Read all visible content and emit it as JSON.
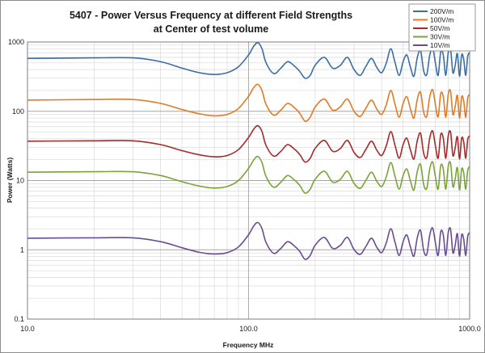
{
  "chart_data": {
    "type": "line",
    "title_lines": [
      "5407 - Power Versus Frequency at different Field Strengths",
      "at Center of test volume"
    ],
    "xlabel": "Frequency MHz",
    "ylabel": "Power (Watts)",
    "xscale": "log",
    "yscale": "log",
    "xlim": [
      10,
      1000
    ],
    "ylim": [
      0.1,
      1000
    ],
    "x_ticks": [
      10,
      100,
      1000
    ],
    "x_tick_labels": [
      "10.0",
      "100.0",
      "1000.0"
    ],
    "y_ticks": [
      0.1,
      1,
      10,
      100,
      1000
    ],
    "y_tick_labels": [
      "0.1",
      "1",
      "10",
      "100",
      "1000"
    ],
    "grid": true,
    "legend_position": "top-right",
    "x": [
      10,
      20,
      30,
      40,
      50,
      60,
      70,
      80,
      90,
      100,
      105,
      110,
      115,
      120,
      130,
      140,
      150,
      160,
      170,
      180,
      190,
      200,
      220,
      240,
      260,
      280,
      300,
      320,
      340,
      360,
      380,
      400,
      420,
      440,
      460,
      480,
      500,
      520,
      540,
      560,
      580,
      600,
      620,
      640,
      660,
      680,
      700,
      720,
      740,
      760,
      780,
      800,
      820,
      840,
      860,
      880,
      900,
      920,
      940,
      960,
      980,
      1000
    ],
    "series": [
      {
        "name": "200V/m",
        "color": "#3a6ea5",
        "values": [
          580,
          590,
          590,
          520,
          420,
          360,
          340,
          360,
          440,
          650,
          850,
          980,
          800,
          500,
          350,
          420,
          520,
          460,
          380,
          300,
          330,
          460,
          600,
          420,
          460,
          600,
          400,
          330,
          450,
          580,
          430,
          360,
          500,
          800,
          500,
          330,
          520,
          650,
          430,
          320,
          600,
          750,
          380,
          340,
          640,
          820,
          500,
          330,
          720,
          650,
          330,
          700,
          780,
          360,
          460,
          680,
          320,
          650,
          560,
          330,
          620,
          700
        ]
      },
      {
        "name": "100V/m",
        "color": "#e07b26",
        "values": [
          145,
          148,
          148,
          130,
          106,
          92,
          86,
          90,
          110,
          165,
          215,
          245,
          200,
          125,
          88,
          104,
          130,
          115,
          95,
          72,
          82,
          115,
          150,
          104,
          116,
          150,
          100,
          84,
          112,
          145,
          108,
          90,
          125,
          200,
          125,
          82,
          130,
          162,
          108,
          80,
          150,
          188,
          96,
          85,
          160,
          205,
          125,
          83,
          180,
          162,
          82,
          175,
          195,
          90,
          116,
          170,
          80,
          162,
          140,
          82,
          155,
          175
        ]
      },
      {
        "name": "50V/m",
        "color": "#a52a2a",
        "values": [
          37,
          37.5,
          37.5,
          33,
          27,
          23.5,
          22,
          23,
          28,
          42,
          54,
          62,
          51,
          32,
          22.5,
          26.5,
          33,
          29,
          24,
          18.5,
          21,
          29,
          38,
          26.5,
          29,
          38,
          25.5,
          21.5,
          28.5,
          37,
          27.5,
          23,
          32,
          51,
          32,
          21,
          33,
          41,
          27.5,
          20.5,
          38,
          48,
          24.5,
          21.5,
          41,
          52,
          32,
          21,
          46,
          41,
          21,
          44,
          50,
          23,
          29.5,
          43,
          20.5,
          41,
          36,
          21,
          39,
          44
        ]
      },
      {
        "name": "30V/m",
        "color": "#7aa33a",
        "values": [
          13.2,
          13.4,
          13.4,
          11.8,
          9.6,
          8.3,
          7.8,
          8.2,
          10,
          15,
          19.4,
          22.3,
          18.2,
          11.4,
          8,
          9.5,
          11.8,
          10.4,
          8.6,
          6.6,
          7.5,
          10.4,
          13.6,
          9.5,
          10.4,
          13.6,
          9.1,
          7.7,
          10.2,
          13.2,
          9.8,
          8.2,
          11.4,
          18.2,
          11.4,
          7.5,
          11.8,
          14.7,
          9.8,
          7.3,
          13.6,
          17.1,
          8.7,
          7.7,
          14.6,
          18.6,
          11.4,
          7.5,
          16.4,
          14.7,
          7.5,
          15.9,
          17.8,
          8.2,
          10.5,
          15.4,
          7.3,
          14.7,
          12.8,
          7.5,
          14,
          15.9
        ]
      },
      {
        "name": "10V/m",
        "color": "#6a4c93",
        "values": [
          1.47,
          1.49,
          1.49,
          1.31,
          1.07,
          0.92,
          0.87,
          0.91,
          1.1,
          1.65,
          2.16,
          2.48,
          2.02,
          1.27,
          0.89,
          1.05,
          1.31,
          1.16,
          0.96,
          0.73,
          0.83,
          1.16,
          1.51,
          1.05,
          1.16,
          1.51,
          1.01,
          0.86,
          1.13,
          1.47,
          1.09,
          0.91,
          1.27,
          2.02,
          1.27,
          0.83,
          1.31,
          1.64,
          1.09,
          0.81,
          1.51,
          1.9,
          0.97,
          0.86,
          1.62,
          2.07,
          1.27,
          0.83,
          1.82,
          1.64,
          0.83,
          1.77,
          1.98,
          0.91,
          1.16,
          1.71,
          0.81,
          1.64,
          1.42,
          0.83,
          1.56,
          1.77
        ]
      }
    ]
  }
}
